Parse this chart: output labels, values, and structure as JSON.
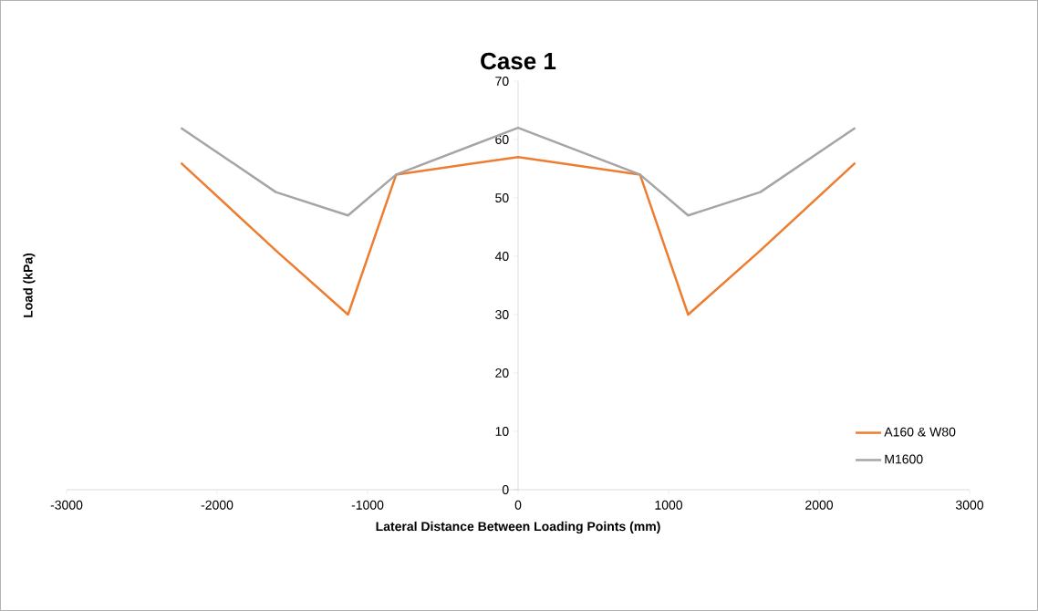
{
  "chart_data": {
    "type": "line",
    "title": "Case 1",
    "xlabel": "Lateral Distance Between Loading Points (mm)",
    "ylabel": "Load (kPa)",
    "x": [
      -2240,
      -1610,
      -1130,
      -810,
      0,
      810,
      1130,
      1610,
      2240
    ],
    "series": [
      {
        "name": "A160 & W80",
        "color": "#ed7d31",
        "values": [
          56,
          41,
          30,
          54,
          57,
          54,
          30,
          41,
          56
        ]
      },
      {
        "name": "M1600",
        "color": "#a5a5a5",
        "values": [
          62,
          51,
          47,
          54,
          62,
          54,
          47,
          51,
          62
        ]
      }
    ],
    "xlim": [
      -3000,
      3000
    ],
    "xticks": [
      -3000,
      -2000,
      -1000,
      0,
      1000,
      2000,
      3000
    ],
    "ylim": [
      0,
      70
    ],
    "yticks": [
      0,
      10,
      20,
      30,
      40,
      50,
      60,
      70
    ],
    "grid": false,
    "legend": "bottom right",
    "marker": "none",
    "line_style": "solid"
  }
}
